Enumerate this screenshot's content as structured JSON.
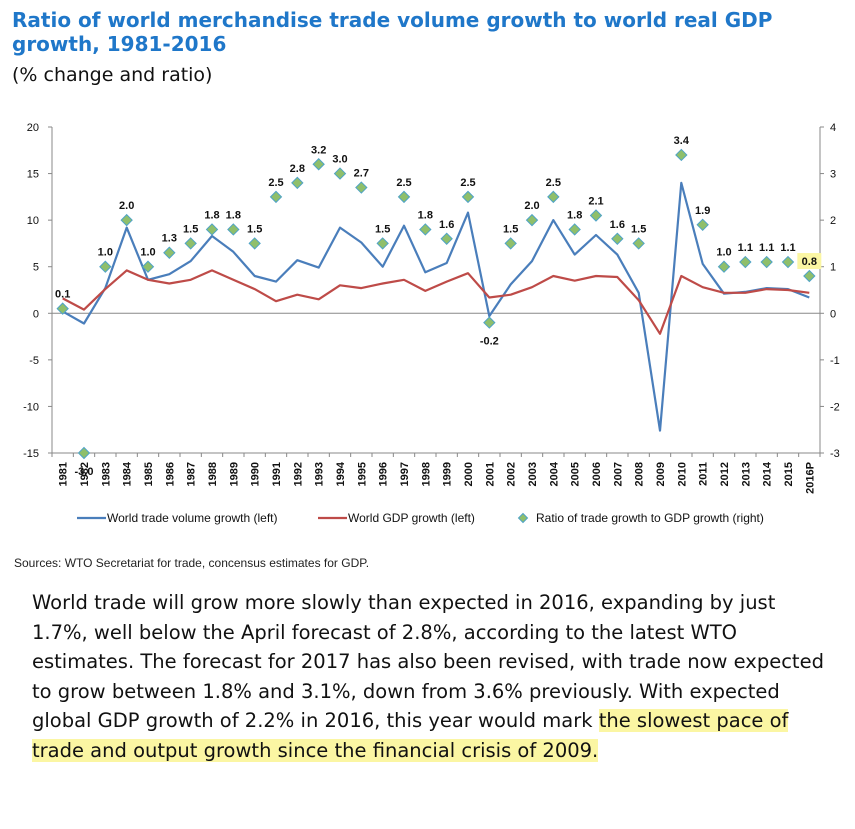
{
  "title": "Ratio of world merchandise trade volume growth to world real GDP growth, 1981-2016",
  "subtitle": "(% change and ratio)",
  "source": "Sources: WTO Secretariat for trade, concensus estimates for GDP.",
  "body": {
    "text_before": "World trade will grow more slowly than expected in 2016, expanding by just 1.7%, well below the April forecast of 2.8%, according to the latest WTO estimates. The forecast for 2017 has also been revised, with trade now expected to grow between 1.8% and 3.1%, down from 3.6% previously. With expected global GDP growth of 2.2% in 2016, this year would mark ",
    "highlight": "the slowest pace of trade and output growth since the financial crisis of 2009."
  },
  "colors": {
    "trade": "#4a7ebb",
    "gdp": "#be4b48",
    "ratio_fill": "#8fbf6b",
    "ratio_stroke": "#4fa3c7",
    "label_highlight": "#fbf6a3"
  },
  "chart_data": {
    "type": "line",
    "title": "",
    "xlabel": "",
    "ylabel_left": "",
    "ylabel_right": "",
    "categories": [
      "1981",
      "1982",
      "1983",
      "1984",
      "1985",
      "1986",
      "1987",
      "1988",
      "1989",
      "1990",
      "1991",
      "1992",
      "1993",
      "1994",
      "1995",
      "1996",
      "1997",
      "1998",
      "1999",
      "2000",
      "2001",
      "2002",
      "2003",
      "2004",
      "2005",
      "2006",
      "2007",
      "2008",
      "2009",
      "2010",
      "2011",
      "2012",
      "2013",
      "2014",
      "2015",
      "2016P"
    ],
    "ylim_left": [
      -15,
      20
    ],
    "yticks_left": [
      "20",
      "15",
      "10",
      "5",
      "0",
      "-5",
      "-10",
      "-15"
    ],
    "ylim_right": [
      -3,
      4
    ],
    "yticks_right": [
      "4",
      "3",
      "2",
      "1",
      "0",
      "-1",
      "-2",
      "-3"
    ],
    "grid": false,
    "legend": "bottom",
    "series": [
      {
        "name": "World trade volume growth (left)",
        "axis": "left",
        "type": "line",
        "values": [
          0.2,
          -1.1,
          2.7,
          9.2,
          3.6,
          4.2,
          5.6,
          8.3,
          6.6,
          4.0,
          3.4,
          5.7,
          4.9,
          9.2,
          7.6,
          5.0,
          9.4,
          4.4,
          5.4,
          10.8,
          -0.3,
          3.1,
          5.6,
          10.0,
          6.3,
          8.4,
          6.3,
          2.2,
          -12.6,
          14.0,
          5.3,
          2.1,
          2.3,
          2.7,
          2.6,
          1.7
        ]
      },
      {
        "name": "World GDP growth (left)",
        "axis": "left",
        "type": "line",
        "values": [
          1.6,
          0.4,
          2.6,
          4.6,
          3.6,
          3.2,
          3.6,
          4.6,
          3.6,
          2.6,
          1.3,
          2.0,
          1.5,
          3.0,
          2.7,
          3.2,
          3.6,
          2.4,
          3.4,
          4.3,
          1.7,
          2.0,
          2.8,
          4.0,
          3.5,
          4.0,
          3.9,
          1.4,
          -2.2,
          4.0,
          2.8,
          2.2,
          2.2,
          2.6,
          2.5,
          2.2
        ]
      },
      {
        "name": "Ratio of trade growth to GDP growth (right)",
        "axis": "right",
        "type": "scatter",
        "values": [
          0.1,
          -3.0,
          1.0,
          2.0,
          1.0,
          1.3,
          1.5,
          1.8,
          1.8,
          1.5,
          2.5,
          2.8,
          3.2,
          3.0,
          2.7,
          1.5,
          2.5,
          1.8,
          1.6,
          2.5,
          -0.2,
          1.5,
          2.0,
          2.5,
          1.8,
          2.1,
          1.6,
          1.5,
          null,
          3.4,
          1.9,
          1.0,
          1.1,
          1.1,
          1.1,
          0.8
        ],
        "labels": [
          "0.1",
          "-3.0",
          "1.0",
          "2.0",
          "1.0",
          "1.3",
          "1.5",
          "1.8",
          "1.8",
          "1.5",
          "2.5",
          "2.8",
          "3.2",
          "3.0",
          "2.7",
          "1.5",
          "2.5",
          "1.8",
          "1.6",
          "2.5",
          "-0.2",
          "1.5",
          "2.0",
          "2.5",
          "1.8",
          "2.1",
          "1.6",
          "1.5",
          "",
          "3.4",
          "1.9",
          "1.0",
          "1.1",
          "1.1",
          "1.1",
          "0.8"
        ]
      }
    ]
  }
}
